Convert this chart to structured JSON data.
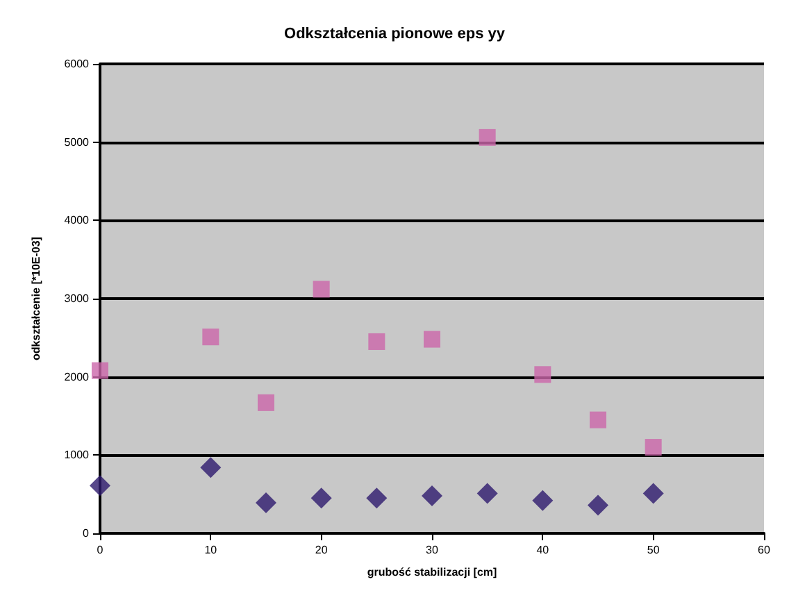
{
  "chart_data": {
    "type": "scatter",
    "title": "Odkształcenia pionowe eps yy",
    "xlabel": "grubość stabilizacji [cm]",
    "ylabel": "odkształcenie [*10E-03]",
    "x": [
      0,
      10,
      15,
      20,
      25,
      30,
      35,
      40,
      45,
      50
    ],
    "series": [
      {
        "marker": "diamond",
        "color": "#2e1a6e",
        "values": [
          610,
          840,
          390,
          450,
          450,
          480,
          510,
          420,
          360,
          510
        ]
      },
      {
        "marker": "square",
        "color": "#cc66aa",
        "values": [
          2080,
          2510,
          1670,
          3120,
          2450,
          2480,
          5060,
          2030,
          1450,
          1100
        ]
      }
    ],
    "xlim": [
      0,
      60
    ],
    "xticks": [
      0,
      10,
      20,
      30,
      40,
      50,
      60
    ],
    "ylim": [
      0,
      6000
    ],
    "yticks": [
      0,
      1000,
      2000,
      3000,
      4000,
      5000,
      6000
    ],
    "grid": "y"
  }
}
